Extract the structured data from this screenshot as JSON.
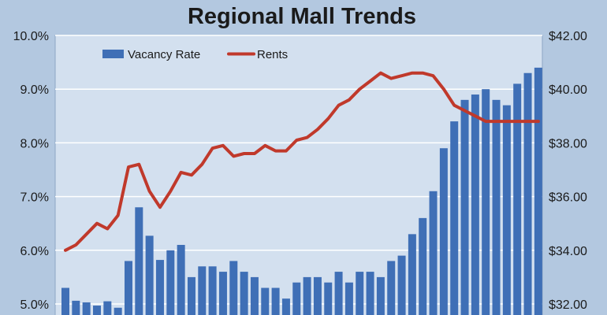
{
  "chart_data": {
    "type": "bar",
    "title": "Regional Mall Trends",
    "legend_placement": "top-left",
    "grid": true,
    "y_left": {
      "range": [
        5.0,
        10.0
      ],
      "ticks": [
        5.0,
        6.0,
        7.0,
        8.0,
        9.0,
        10.0
      ],
      "tick_labels": [
        "5.0%",
        "6.0%",
        "7.0%",
        "8.0%",
        "9.0%",
        "10.0%"
      ]
    },
    "y_right": {
      "range": [
        32.0,
        42.0
      ],
      "ticks": [
        32.0,
        34.0,
        36.0,
        38.0,
        40.0,
        42.0
      ],
      "tick_labels": [
        "$32.00",
        "$34.00",
        "$36.00",
        "$38.00",
        "$40.00",
        "$42.00"
      ]
    },
    "series": [
      {
        "name": "Vacancy Rate",
        "kind": "bar",
        "axis": "left",
        "color": "#3f6fb6",
        "values": [
          5.3,
          5.06,
          5.03,
          4.97,
          5.05,
          4.93,
          5.8,
          6.8,
          6.27,
          5.82,
          6.0,
          6.1,
          5.5,
          5.7,
          5.7,
          5.6,
          5.8,
          5.6,
          5.5,
          5.3,
          5.3,
          5.1,
          5.4,
          5.5,
          5.5,
          5.4,
          5.6,
          5.4,
          5.6,
          5.6,
          5.5,
          5.8,
          5.9,
          6.3,
          6.6,
          7.1,
          7.9,
          8.4,
          8.8,
          8.9,
          9.0,
          8.8,
          8.7,
          9.1,
          9.3,
          9.4
        ]
      },
      {
        "name": "Rents",
        "kind": "line",
        "axis": "right",
        "color": "#c0392b",
        "values": [
          34.0,
          34.2,
          34.6,
          35.0,
          34.8,
          35.3,
          37.1,
          37.2,
          36.2,
          35.6,
          36.2,
          36.9,
          36.8,
          37.2,
          37.8,
          37.9,
          37.5,
          37.6,
          37.6,
          37.9,
          37.7,
          37.7,
          38.1,
          38.2,
          38.5,
          38.9,
          39.4,
          39.6,
          40.0,
          40.3,
          40.6,
          40.4,
          40.5,
          40.6,
          40.6,
          40.5,
          40.0,
          39.4,
          39.2,
          39.0,
          38.8,
          38.8,
          38.8,
          38.8,
          38.8,
          38.8
        ]
      }
    ]
  }
}
